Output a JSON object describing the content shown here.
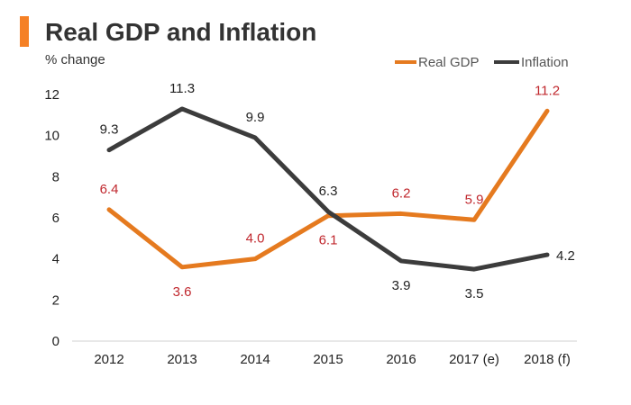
{
  "colors": {
    "accent_bar": "#F58025",
    "real_gdp": "#E57A1F",
    "inflation": "#3C3C3C",
    "gdp_label": "#C0272D",
    "inflation_label": "#222222",
    "axis": "#D0D0D0"
  },
  "chart_data": {
    "type": "line",
    "title": "Real GDP and Inflation",
    "subtitle": "% change",
    "categories": [
      "2012",
      "2013",
      "2014",
      "2015",
      "2016",
      "2017 (e)",
      "2018 (f)"
    ],
    "ylim": [
      0,
      12
    ],
    "yticks": [
      0,
      2,
      4,
      6,
      8,
      10,
      12
    ],
    "ytick_labels": [
      "0",
      "2",
      "4",
      "6",
      "8",
      "10",
      "12"
    ],
    "grid": false,
    "legend_position": "top-right",
    "series": [
      {
        "name": "Real GDP",
        "values": [
          6.4,
          3.6,
          4.0,
          6.1,
          6.2,
          5.9,
          11.2
        ],
        "labels": [
          "6.4",
          "3.6",
          "4.0",
          "6.1",
          "6.2",
          "5.9",
          "11.2"
        ],
        "label_positions": [
          "above",
          "below",
          "above",
          "below",
          "above",
          "above",
          "above"
        ]
      },
      {
        "name": "Inflation",
        "values": [
          9.3,
          11.3,
          9.9,
          6.3,
          3.9,
          3.5,
          4.2
        ],
        "labels": [
          "9.3",
          "11.3",
          "9.9",
          "6.3",
          "3.9",
          "3.5",
          "4.2"
        ],
        "label_positions": [
          "above",
          "above",
          "above",
          "above",
          "below",
          "below",
          "right"
        ]
      }
    ]
  }
}
